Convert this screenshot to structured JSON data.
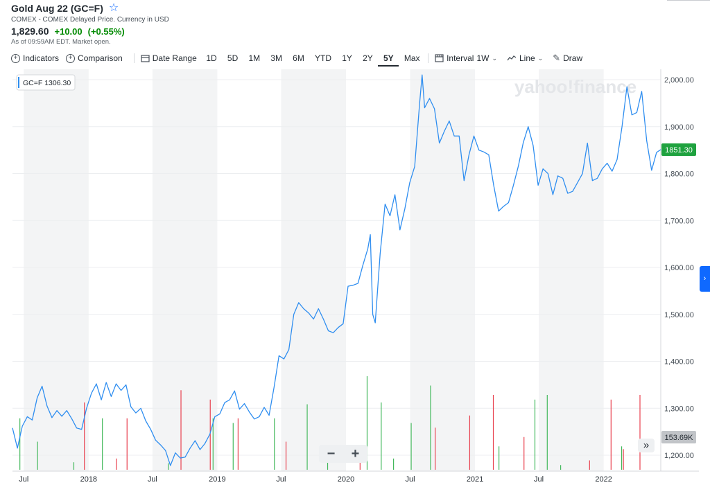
{
  "header": {
    "title": "Gold Aug 22 (GC=F)",
    "exchange": "COMEX - COMEX Delayed Price. Currency in USD",
    "price": "1,829.60",
    "change": "+10.00",
    "change_pct": "(+0.55%)",
    "as_of": "As of 09:59AM EDT. Market open."
  },
  "toolbar": {
    "indicators": "Indicators",
    "comparison": "Comparison",
    "date_range": "Date Range",
    "ranges": [
      "1D",
      "5D",
      "1M",
      "3M",
      "6M",
      "YTD",
      "1Y",
      "2Y",
      "5Y",
      "Max"
    ],
    "active_range": "5Y",
    "interval_label": "Interval",
    "interval_value": "1W",
    "chart_type": "Line",
    "draw": "Draw"
  },
  "watermark": "yahoo!finance",
  "legend": {
    "label": "GC=F",
    "value": "1306.30"
  },
  "current_price_label": "1851.30",
  "volume_label": "153.69K",
  "zoom": {
    "minus": "−",
    "plus": "+"
  },
  "colors": {
    "line": "#2f8ef0",
    "up": "#43b85c",
    "down": "#e8404e",
    "price_badge": "#1fa23f",
    "shade": "#f3f4f5"
  },
  "chart_data": {
    "type": "line",
    "ylim": [
      1170,
      2020
    ],
    "y_ticks": [
      1200,
      1300,
      1400,
      1500,
      1600,
      1700,
      1800,
      1900,
      2000
    ],
    "y_tick_labels": [
      "1,200.00",
      "1,300.00",
      "1,400.00",
      "1,500.00",
      "1,600.00",
      "1,700.00",
      "1,800.00",
      "1,900.00",
      "2,000.00"
    ],
    "x_tick_labels": [
      "Jul",
      "2018",
      "Jul",
      "2019",
      "Jul",
      "2020",
      "Jul",
      "2021",
      "Jul",
      "2022"
    ],
    "x_ticks": [
      "2017-07-01",
      "2018-01-01",
      "2018-07-01",
      "2019-01-01",
      "2019-07-01",
      "2020-01-01",
      "2020-07-01",
      "2021-01-01",
      "2021-07-01",
      "2022-01-01"
    ],
    "x_range": [
      "2017-05-30",
      "2022-06-12"
    ],
    "shaded_periods": [
      [
        "2017-07-01",
        "2018-01-01"
      ],
      [
        "2018-07-01",
        "2019-01-01"
      ],
      [
        "2019-07-01",
        "2020-01-01"
      ],
      [
        "2020-07-01",
        "2021-01-01"
      ],
      [
        "2021-07-01",
        "2022-01-01"
      ]
    ],
    "series": [
      {
        "points": [
          [
            "2017-05-30",
            1258
          ],
          [
            "2017-06-13",
            1215
          ],
          [
            "2017-06-27",
            1262
          ],
          [
            "2017-07-11",
            1282
          ],
          [
            "2017-07-25",
            1275
          ],
          [
            "2017-08-08",
            1322
          ],
          [
            "2017-08-22",
            1347
          ],
          [
            "2017-09-05",
            1305
          ],
          [
            "2017-09-19",
            1280
          ],
          [
            "2017-10-03",
            1295
          ],
          [
            "2017-10-17",
            1283
          ],
          [
            "2017-10-31",
            1295
          ],
          [
            "2017-11-14",
            1278
          ],
          [
            "2017-11-28",
            1258
          ],
          [
            "2017-12-12",
            1255
          ],
          [
            "2017-12-26",
            1300
          ],
          [
            "2018-01-09",
            1332
          ],
          [
            "2018-01-23",
            1352
          ],
          [
            "2018-02-06",
            1318
          ],
          [
            "2018-02-20",
            1355
          ],
          [
            "2018-03-06",
            1325
          ],
          [
            "2018-03-20",
            1352
          ],
          [
            "2018-04-03",
            1338
          ],
          [
            "2018-04-17",
            1350
          ],
          [
            "2018-05-01",
            1303
          ],
          [
            "2018-05-15",
            1290
          ],
          [
            "2018-05-29",
            1300
          ],
          [
            "2018-06-12",
            1273
          ],
          [
            "2018-06-26",
            1255
          ],
          [
            "2018-07-10",
            1232
          ],
          [
            "2018-07-24",
            1222
          ],
          [
            "2018-08-07",
            1210
          ],
          [
            "2018-08-21",
            1178
          ],
          [
            "2018-09-04",
            1205
          ],
          [
            "2018-09-18",
            1194
          ],
          [
            "2018-10-02",
            1196
          ],
          [
            "2018-10-16",
            1215
          ],
          [
            "2018-10-30",
            1231
          ],
          [
            "2018-11-13",
            1212
          ],
          [
            "2018-11-27",
            1225
          ],
          [
            "2018-12-11",
            1245
          ],
          [
            "2018-12-25",
            1282
          ],
          [
            "2019-01-08",
            1288
          ],
          [
            "2019-01-22",
            1312
          ],
          [
            "2019-02-05",
            1318
          ],
          [
            "2019-02-19",
            1337
          ],
          [
            "2019-03-05",
            1298
          ],
          [
            "2019-03-19",
            1310
          ],
          [
            "2019-04-02",
            1292
          ],
          [
            "2019-04-16",
            1277
          ],
          [
            "2019-04-30",
            1282
          ],
          [
            "2019-05-14",
            1302
          ],
          [
            "2019-05-28",
            1285
          ],
          [
            "2019-06-11",
            1345
          ],
          [
            "2019-06-25",
            1412
          ],
          [
            "2019-07-09",
            1405
          ],
          [
            "2019-07-23",
            1425
          ],
          [
            "2019-08-06",
            1500
          ],
          [
            "2019-08-20",
            1525
          ],
          [
            "2019-09-03",
            1512
          ],
          [
            "2019-09-17",
            1503
          ],
          [
            "2019-10-01",
            1490
          ],
          [
            "2019-10-15",
            1512
          ],
          [
            "2019-10-29",
            1490
          ],
          [
            "2019-11-12",
            1465
          ],
          [
            "2019-11-26",
            1461
          ],
          [
            "2019-12-10",
            1472
          ],
          [
            "2019-12-24",
            1480
          ],
          [
            "2020-01-07",
            1560
          ],
          [
            "2020-01-21",
            1562
          ],
          [
            "2020-02-04",
            1566
          ],
          [
            "2020-02-18",
            1605
          ],
          [
            "2020-03-03",
            1640
          ],
          [
            "2020-03-10",
            1670
          ],
          [
            "2020-03-17",
            1500
          ],
          [
            "2020-03-24",
            1482
          ],
          [
            "2020-04-07",
            1630
          ],
          [
            "2020-04-21",
            1735
          ],
          [
            "2020-05-05",
            1710
          ],
          [
            "2020-05-19",
            1755
          ],
          [
            "2020-06-02",
            1680
          ],
          [
            "2020-06-16",
            1725
          ],
          [
            "2020-06-30",
            1781
          ],
          [
            "2020-07-14",
            1815
          ],
          [
            "2020-07-28",
            1950
          ],
          [
            "2020-08-04",
            2010
          ],
          [
            "2020-08-11",
            1940
          ],
          [
            "2020-08-25",
            1960
          ],
          [
            "2020-09-08",
            1938
          ],
          [
            "2020-09-22",
            1865
          ],
          [
            "2020-10-06",
            1890
          ],
          [
            "2020-10-20",
            1912
          ],
          [
            "2020-11-03",
            1880
          ],
          [
            "2020-11-17",
            1880
          ],
          [
            "2020-12-01",
            1785
          ],
          [
            "2020-12-15",
            1840
          ],
          [
            "2020-12-29",
            1880
          ],
          [
            "2021-01-12",
            1850
          ],
          [
            "2021-01-26",
            1846
          ],
          [
            "2021-02-09",
            1840
          ],
          [
            "2021-02-23",
            1775
          ],
          [
            "2021-03-09",
            1720
          ],
          [
            "2021-03-23",
            1730
          ],
          [
            "2021-04-06",
            1738
          ],
          [
            "2021-04-20",
            1775
          ],
          [
            "2021-05-04",
            1816
          ],
          [
            "2021-05-18",
            1866
          ],
          [
            "2021-06-01",
            1900
          ],
          [
            "2021-06-15",
            1860
          ],
          [
            "2021-06-29",
            1775
          ],
          [
            "2021-07-13",
            1810
          ],
          [
            "2021-07-27",
            1800
          ],
          [
            "2021-08-10",
            1755
          ],
          [
            "2021-08-24",
            1795
          ],
          [
            "2021-09-07",
            1790
          ],
          [
            "2021-09-21",
            1758
          ],
          [
            "2021-10-05",
            1762
          ],
          [
            "2021-10-19",
            1781
          ],
          [
            "2021-11-02",
            1800
          ],
          [
            "2021-11-16",
            1865
          ],
          [
            "2021-11-30",
            1785
          ],
          [
            "2021-12-14",
            1790
          ],
          [
            "2021-12-28",
            1810
          ],
          [
            "2022-01-11",
            1822
          ],
          [
            "2022-01-25",
            1805
          ],
          [
            "2022-02-08",
            1830
          ],
          [
            "2022-02-22",
            1900
          ],
          [
            "2022-03-08",
            1985
          ],
          [
            "2022-03-22",
            1925
          ],
          [
            "2022-04-05",
            1930
          ],
          [
            "2022-04-19",
            1975
          ],
          [
            "2022-05-03",
            1870
          ],
          [
            "2022-05-17",
            1807
          ],
          [
            "2022-05-31",
            1845
          ],
          [
            "2022-06-12",
            1851
          ]
        ]
      }
    ],
    "volume": {
      "up": [
        [
          "2017-06-20",
          0.55
        ],
        [
          "2017-08-09",
          0.3
        ],
        [
          "2017-11-20",
          0.08
        ],
        [
          "2018-02-09",
          0.55
        ],
        [
          "2018-08-15",
          0.07
        ],
        [
          "2018-12-20",
          0.55
        ],
        [
          "2019-02-15",
          0.5
        ],
        [
          "2019-06-12",
          0.55
        ],
        [
          "2019-09-13",
          0.7
        ],
        [
          "2019-11-10",
          0.1
        ],
        [
          "2020-03-01",
          1.0
        ],
        [
          "2020-04-10",
          0.72
        ],
        [
          "2020-05-15",
          0.12
        ],
        [
          "2020-07-04",
          0.5
        ],
        [
          "2020-08-28",
          0.9
        ],
        [
          "2021-03-10",
          0.25
        ],
        [
          "2021-06-20",
          0.75
        ],
        [
          "2021-07-25",
          0.8
        ],
        [
          "2021-09-01",
          0.05
        ],
        [
          "2022-02-21",
          0.25
        ]
      ],
      "down": [
        [
          "2017-12-20",
          0.72
        ],
        [
          "2018-03-21",
          0.12
        ],
        [
          "2018-04-20",
          0.55
        ],
        [
          "2018-09-20",
          0.85
        ],
        [
          "2018-12-12",
          0.75
        ],
        [
          "2019-03-01",
          0.55
        ],
        [
          "2019-07-15",
          0.3
        ],
        [
          "2020-02-10",
          0.08
        ],
        [
          "2020-09-10",
          0.45
        ],
        [
          "2020-12-17",
          0.58
        ],
        [
          "2021-02-22",
          0.8
        ],
        [
          "2021-05-20",
          0.35
        ],
        [
          "2021-11-22",
          0.1
        ],
        [
          "2022-01-22",
          0.75
        ],
        [
          "2022-02-26",
          0.22
        ],
        [
          "2022-04-14",
          0.8
        ]
      ]
    }
  }
}
